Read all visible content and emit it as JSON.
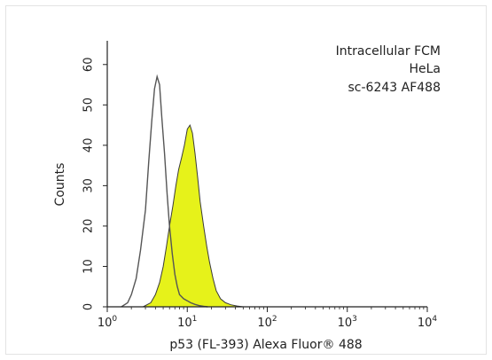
{
  "chart_data": {
    "type": "area",
    "title": "",
    "annotations": [
      "Intracellular FCM",
      "HeLa",
      "sc-6243 AF488"
    ],
    "xlabel": "p53 (FL-393) Alexa Fluor® 488",
    "ylabel": "Counts",
    "x_scale": "log",
    "xlim": [
      1,
      10000
    ],
    "ylim": [
      0,
      65
    ],
    "x_ticks": [
      1,
      10,
      100,
      1000,
      10000
    ],
    "x_tick_labels": [
      {
        "base": "10",
        "exp": "0"
      },
      {
        "base": "10",
        "exp": "1"
      },
      {
        "base": "10",
        "exp": "2"
      },
      {
        "base": "10",
        "exp": "3"
      },
      {
        "base": "10",
        "exp": "4"
      }
    ],
    "y_ticks": [
      0,
      10,
      20,
      30,
      40,
      50,
      60
    ],
    "y_tick_labels": [
      "0",
      "10",
      "20",
      "30",
      "40",
      "50",
      "60"
    ],
    "grid": false,
    "series": [
      {
        "style": "unfilled outline (control)",
        "color": "#555555",
        "x": [
          1.5,
          1.8,
          2.0,
          2.3,
          2.6,
          3.0,
          3.3,
          3.6,
          3.9,
          4.2,
          4.5,
          4.8,
          5.2,
          5.6,
          6.0,
          6.5,
          7.0,
          7.5,
          8.0,
          9.0,
          10.0,
          11.0,
          12.5,
          14.0,
          16.0,
          18.0
        ],
        "y": [
          0,
          1,
          3,
          7,
          14,
          24,
          36,
          46,
          54,
          57,
          55,
          47,
          38,
          28,
          20,
          13,
          8,
          5,
          3,
          2,
          1.5,
          1,
          0.6,
          0.3,
          0.1,
          0
        ]
      },
      {
        "style": "filled (p53 Alexa Fluor 488)",
        "color": "#e6f21a",
        "x": [
          2.8,
          3.5,
          4.0,
          4.5,
          5.0,
          5.5,
          6.0,
          6.6,
          7.2,
          7.8,
          8.5,
          9.2,
          10.0,
          10.8,
          11.6,
          12.5,
          13.5,
          14.5,
          16.0,
          17.5,
          19.0,
          21.0,
          23.0,
          26.0,
          30.0,
          35.0,
          42.0,
          50.0
        ],
        "y": [
          0,
          1,
          3,
          6,
          10,
          15,
          20,
          25,
          30,
          34,
          37,
          40,
          44,
          45,
          43,
          38,
          32,
          26,
          20,
          15,
          11,
          7,
          4,
          2,
          1,
          0.5,
          0.2,
          0
        ]
      }
    ]
  }
}
